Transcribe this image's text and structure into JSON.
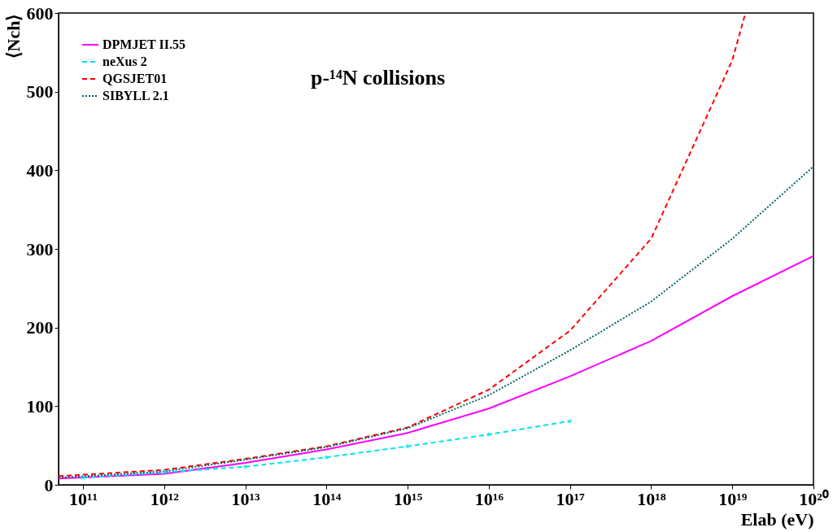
{
  "chart_data": {
    "type": "line",
    "xlabel": "Elab (eV)",
    "ylabel": "⟨Nch⟩",
    "log": "x",
    "annotations": [
      "p-¹⁴N collisions"
    ],
    "xlim": [
      50000000000.0,
      1e+20
    ],
    "ylim": [
      0,
      600
    ],
    "xticks": [
      {
        "value": 100000000000.0,
        "label": "10¹¹"
      },
      {
        "value": 1000000000000.0,
        "label": "10¹²"
      },
      {
        "value": 10000000000000.0,
        "label": "10¹³"
      },
      {
        "value": 100000000000000.0,
        "label": "10¹⁴"
      },
      {
        "value": 1000000000000000.0,
        "label": "10¹⁵"
      },
      {
        "value": 1e+16,
        "label": "10¹⁶"
      },
      {
        "value": 1e+17,
        "label": "10¹⁷"
      },
      {
        "value": 1e+18,
        "label": "10¹⁸"
      },
      {
        "value": 1e+19,
        "label": "10¹⁹"
      },
      {
        "value": 1e+20,
        "label": "10²⁰"
      }
    ],
    "yticks": [
      0,
      100,
      200,
      300,
      400,
      500,
      600
    ],
    "grid": false,
    "legend": "top left",
    "series": [
      {
        "name": "DPMJET II.55",
        "color": "#ff00ff",
        "line_style": "solid",
        "marker": "none",
        "x": [
          50000000000.0,
          1000000000000.0,
          10000000000000.0,
          100000000000000.0,
          1000000000000000.0,
          1e+16,
          1e+17,
          1e+18,
          1e+19,
          1e+20
        ],
        "values": [
          8,
          14,
          28,
          45,
          66,
          97,
          138,
          183,
          240,
          291
        ]
      },
      {
        "name": "neXus 2",
        "color": "#00e5ee",
        "line_style": "dashed",
        "marker": "star",
        "x": [
          100000000000.0,
          1000000000000.0,
          10000000000000.0,
          100000000000000.0,
          1000000000000000.0,
          1e+16,
          1e+17
        ],
        "values": [
          9,
          16,
          23,
          35,
          49,
          64,
          81
        ]
      },
      {
        "name": "QGSJET01",
        "color": "#ff0000",
        "line_style": "dashed",
        "marker": "none",
        "x": [
          50000000000.0,
          1000000000000.0,
          10000000000000.0,
          100000000000000.0,
          1000000000000000.0,
          1e+16,
          1e+17,
          1e+18,
          1e+19,
          1.45e+19
        ],
        "values": [
          11,
          19,
          33,
          49,
          73,
          121,
          196,
          313,
          540,
          600
        ]
      },
      {
        "name": "SIBYLL 2.1",
        "color": "#006666",
        "line_style": "dotted",
        "marker": "none",
        "x": [
          50000000000.0,
          1000000000000.0,
          10000000000000.0,
          100000000000000.0,
          1000000000000000.0,
          1e+16,
          1e+17,
          1e+18,
          1e+19,
          1e+20
        ],
        "values": [
          9,
          17,
          32,
          48,
          72,
          114,
          171,
          233,
          313,
          405
        ]
      }
    ]
  }
}
